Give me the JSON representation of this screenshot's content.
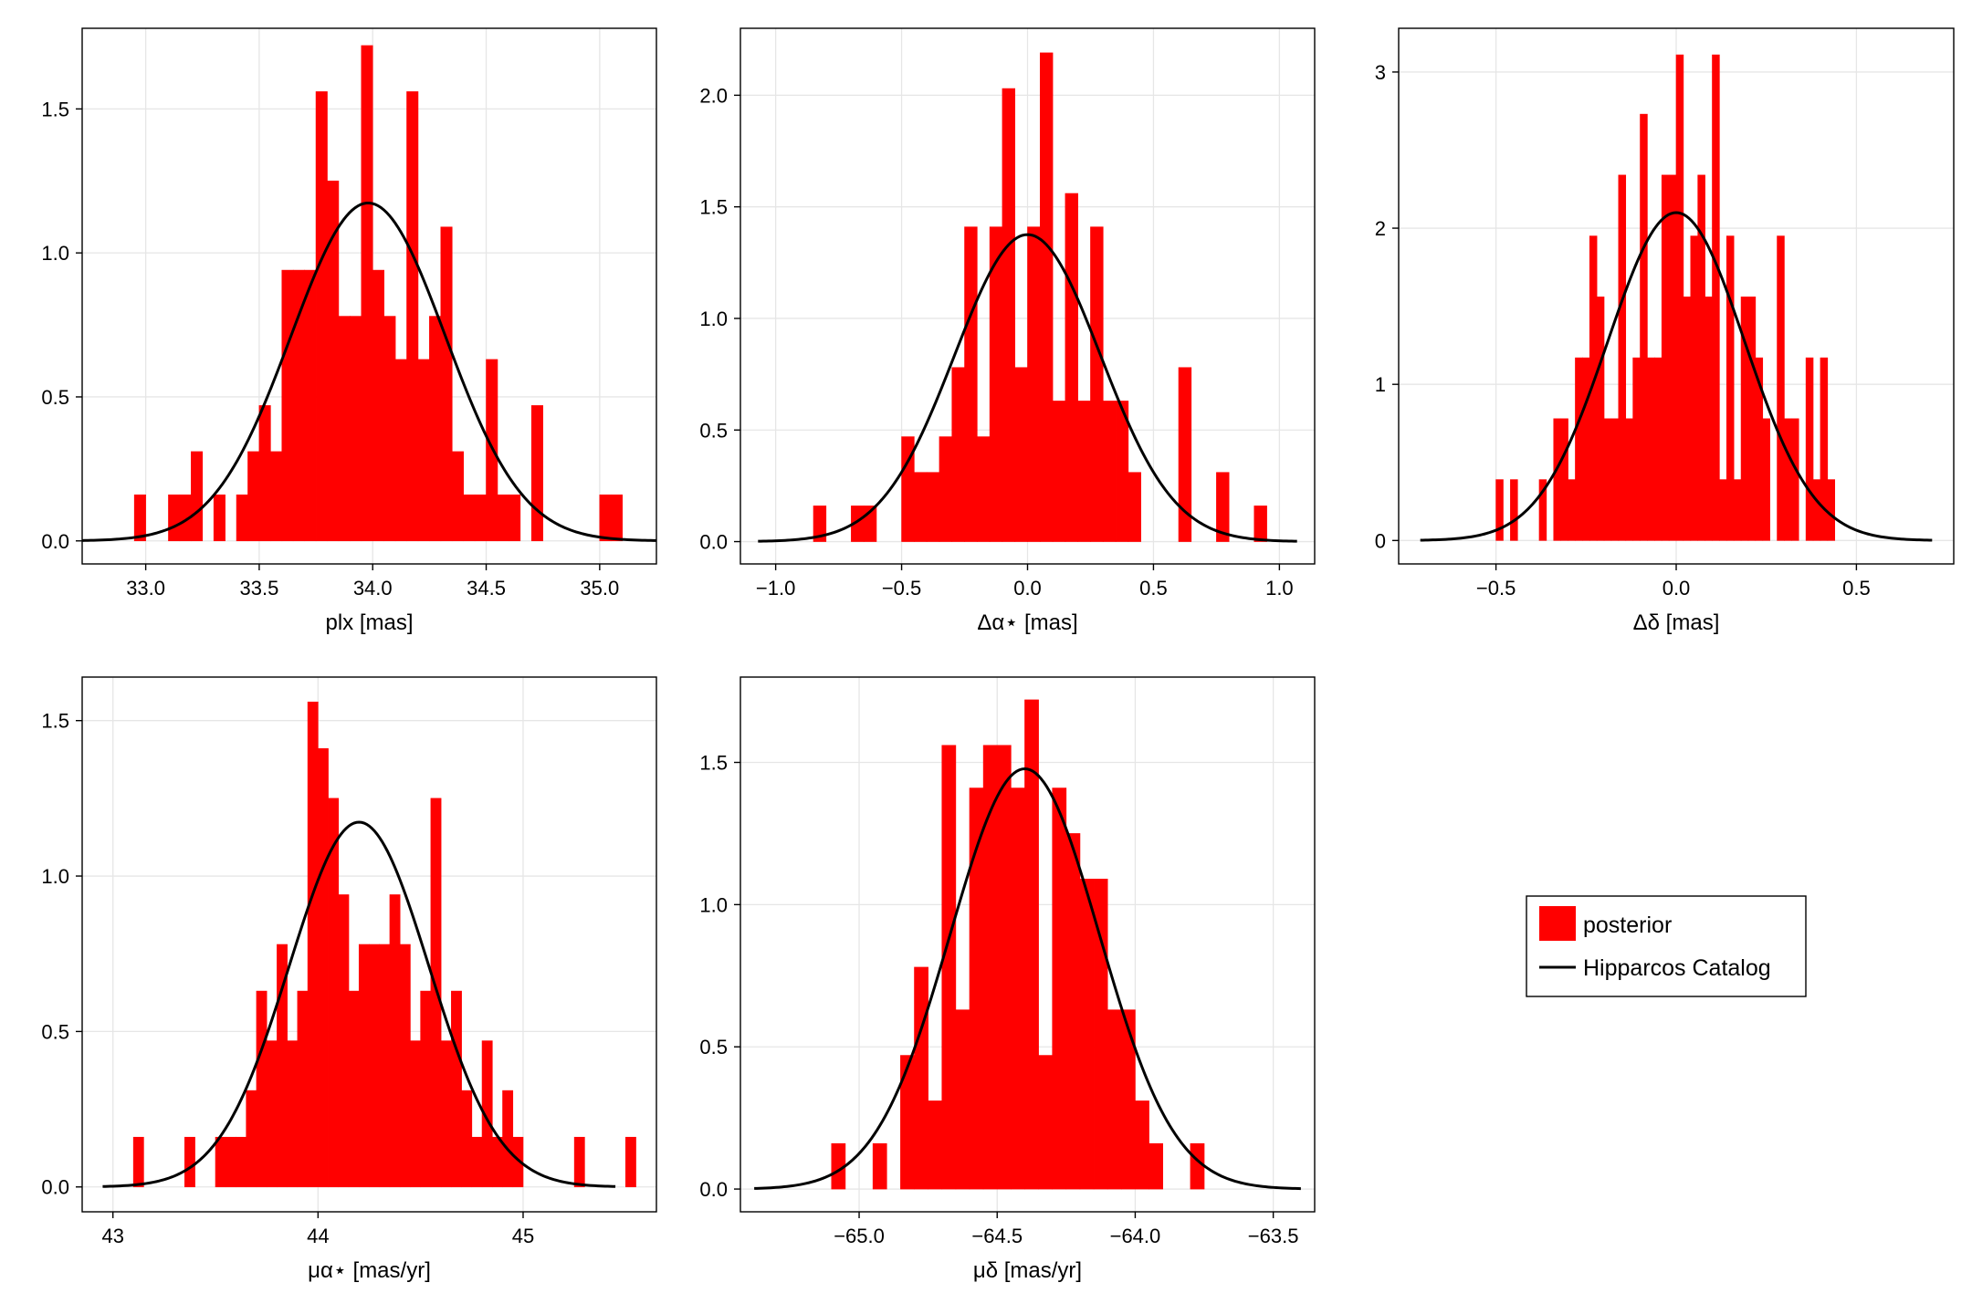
{
  "colors": {
    "posterior": "#ff0000",
    "catalog": "#000000",
    "grid": "#e6e6e6",
    "frame": "#000000"
  },
  "legend": {
    "placement": "right of bottom row",
    "entries": [
      {
        "label": "posterior",
        "kind": "bar",
        "color": "#ff0000"
      },
      {
        "label": "Hipparcos Catalog",
        "kind": "line",
        "color": "#000000"
      }
    ]
  },
  "chart_data": [
    {
      "type": "bar",
      "overlay": "line",
      "grid": true,
      "xlabel": "plx [mas]",
      "xlim": [
        32.72,
        35.25
      ],
      "ylim": [
        -0.08,
        1.78
      ],
      "xticks": [
        33.0,
        33.5,
        34.0,
        34.5,
        35.0
      ],
      "xtick_labels": [
        "33.0",
        "33.5",
        "34.0",
        "34.5",
        "35.0"
      ],
      "yticks": [
        0.0,
        0.5,
        1.0,
        1.5
      ],
      "ytick_labels": [
        "0.0",
        "0.5",
        "1.0",
        "1.5"
      ],
      "bin_width": 0.05,
      "bin_starts": [
        32.95,
        33.1,
        33.15,
        33.2,
        33.3,
        33.4,
        33.45,
        33.5,
        33.55,
        33.6,
        33.65,
        33.7,
        33.75,
        33.8,
        33.85,
        33.9,
        33.95,
        34.0,
        34.05,
        34.1,
        34.15,
        34.2,
        34.25,
        34.3,
        34.35,
        34.4,
        34.45,
        34.5,
        34.55,
        34.6,
        34.7,
        35.0,
        35.05
      ],
      "values": [
        0.16,
        0.16,
        0.16,
        0.31,
        0.16,
        0.16,
        0.31,
        0.47,
        0.31,
        0.94,
        0.94,
        0.94,
        1.56,
        1.25,
        0.78,
        0.78,
        1.72,
        0.94,
        0.78,
        0.63,
        1.56,
        0.63,
        0.78,
        1.09,
        0.31,
        0.16,
        0.16,
        0.63,
        0.16,
        0.16,
        0.47,
        0.16,
        0.16
      ],
      "curve": {
        "mean": 33.98,
        "sd": 0.34,
        "range": [
          32.72,
          35.25
        ],
        "label": "Hipparcos Catalog"
      }
    },
    {
      "type": "bar",
      "overlay": "line",
      "grid": true,
      "xlabel": "Δα⋆ [mas]",
      "xlim": [
        -1.14,
        1.14
      ],
      "ylim": [
        -0.1,
        2.3
      ],
      "xticks": [
        -1.0,
        -0.5,
        0.0,
        0.5,
        1.0
      ],
      "xtick_labels": [
        "−1.0",
        "−0.5",
        "0.0",
        "0.5",
        "1.0"
      ],
      "yticks": [
        0.0,
        0.5,
        1.0,
        1.5,
        2.0
      ],
      "ytick_labels": [
        "0.0",
        "0.5",
        "1.0",
        "1.5",
        "2.0"
      ],
      "bin_width": 0.05,
      "bin_starts": [
        -0.85,
        -0.7,
        -0.65,
        -0.5,
        -0.45,
        -0.4,
        -0.35,
        -0.3,
        -0.25,
        -0.2,
        -0.15,
        -0.1,
        -0.05,
        0.0,
        0.05,
        0.1,
        0.15,
        0.2,
        0.25,
        0.3,
        0.35,
        0.4,
        0.6,
        0.75,
        0.9
      ],
      "values": [
        0.16,
        0.16,
        0.16,
        0.47,
        0.31,
        0.31,
        0.47,
        0.78,
        1.41,
        0.47,
        1.41,
        2.03,
        0.78,
        1.41,
        2.19,
        0.63,
        1.56,
        0.63,
        1.41,
        0.63,
        0.63,
        0.31,
        0.78,
        0.31,
        0.16
      ],
      "curve": {
        "mean": 0.0,
        "sd": 0.29,
        "range": [
          -1.07,
          1.07
        ],
        "label": "Hipparcos Catalog"
      }
    },
    {
      "type": "bar",
      "overlay": "line",
      "grid": true,
      "xlabel": "Δδ [mas]",
      "xlim": [
        -0.77,
        0.77
      ],
      "ylim": [
        -0.15,
        3.28
      ],
      "xticks": [
        -0.5,
        0.0,
        0.5
      ],
      "xtick_labels": [
        "−0.5",
        "0.0",
        "0.5"
      ],
      "yticks": [
        0,
        1,
        2,
        3
      ],
      "ytick_labels": [
        "0",
        "1",
        "2",
        "3"
      ],
      "bin_width": 0.02,
      "bin_starts": [
        -0.5,
        -0.46,
        -0.38,
        -0.34,
        -0.32,
        -0.3,
        -0.28,
        -0.26,
        -0.24,
        -0.22,
        -0.2,
        -0.18,
        -0.16,
        -0.14,
        -0.12,
        -0.1,
        -0.08,
        -0.06,
        -0.04,
        -0.02,
        0.0,
        0.02,
        0.04,
        0.06,
        0.08,
        0.1,
        0.12,
        0.14,
        0.16,
        0.18,
        0.2,
        0.22,
        0.24,
        0.28,
        0.3,
        0.32,
        0.36,
        0.38,
        0.4,
        0.42
      ],
      "values": [
        0.39,
        0.39,
        0.39,
        0.78,
        0.78,
        0.39,
        1.17,
        1.17,
        1.95,
        1.56,
        0.78,
        0.78,
        2.34,
        0.78,
        1.17,
        2.73,
        1.17,
        1.17,
        2.34,
        2.34,
        3.11,
        1.56,
        1.95,
        2.34,
        1.56,
        3.11,
        0.39,
        1.95,
        0.39,
        1.56,
        1.56,
        1.17,
        0.78,
        1.95,
        0.78,
        0.78,
        1.17,
        0.39,
        1.17,
        0.39
      ],
      "curve": {
        "mean": 0.0,
        "sd": 0.19,
        "range": [
          -0.71,
          0.71
        ],
        "label": "Hipparcos Catalog"
      }
    },
    {
      "type": "bar",
      "overlay": "line",
      "grid": true,
      "xlabel": "μα⋆ [mas/yr]",
      "xlim": [
        42.85,
        45.65
      ],
      "ylim": [
        -0.08,
        1.64
      ],
      "xticks": [
        43,
        44,
        45
      ],
      "xtick_labels": [
        "43",
        "44",
        "45"
      ],
      "yticks": [
        0.0,
        0.5,
        1.0,
        1.5
      ],
      "ytick_labels": [
        "0.0",
        "0.5",
        "1.0",
        "1.5"
      ],
      "bin_width": 0.05,
      "bin_starts": [
        43.1,
        43.35,
        43.5,
        43.55,
        43.6,
        43.65,
        43.7,
        43.75,
        43.8,
        43.85,
        43.9,
        43.95,
        44.0,
        44.05,
        44.1,
        44.15,
        44.2,
        44.25,
        44.3,
        44.35,
        44.4,
        44.45,
        44.5,
        44.55,
        44.6,
        44.65,
        44.7,
        44.75,
        44.8,
        44.85,
        44.9,
        44.95,
        45.25,
        45.5
      ],
      "values": [
        0.16,
        0.16,
        0.16,
        0.16,
        0.16,
        0.31,
        0.63,
        0.47,
        0.78,
        0.47,
        0.63,
        1.56,
        1.41,
        1.25,
        0.94,
        0.63,
        0.78,
        0.78,
        0.78,
        0.94,
        0.78,
        0.47,
        0.63,
        1.25,
        0.47,
        0.63,
        0.31,
        0.16,
        0.47,
        0.16,
        0.31,
        0.16,
        0.16,
        0.16
      ],
      "curve": {
        "mean": 44.2,
        "sd": 0.34,
        "range": [
          42.95,
          45.45
        ],
        "label": "Hipparcos Catalog"
      }
    },
    {
      "type": "bar",
      "overlay": "line",
      "grid": true,
      "xlabel": "μδ [mas/yr]",
      "xlim": [
        -65.43,
        -63.35
      ],
      "ylim": [
        -0.08,
        1.8
      ],
      "xticks": [
        -65.0,
        -64.5,
        -64.0,
        -63.5
      ],
      "xtick_labels": [
        "−65.0",
        "−64.5",
        "−64.0",
        "−63.5"
      ],
      "yticks": [
        0.0,
        0.5,
        1.0,
        1.5
      ],
      "ytick_labels": [
        "0.0",
        "0.5",
        "1.0",
        "1.5"
      ],
      "bin_width": 0.05,
      "bin_starts": [
        -65.1,
        -64.95,
        -64.85,
        -64.8,
        -64.75,
        -64.7,
        -64.65,
        -64.6,
        -64.55,
        -64.5,
        -64.45,
        -64.4,
        -64.35,
        -64.3,
        -64.25,
        -64.2,
        -64.15,
        -64.1,
        -64.05,
        -64.0,
        -63.95,
        -63.8
      ],
      "values": [
        0.16,
        0.16,
        0.47,
        0.78,
        0.31,
        1.56,
        0.63,
        1.41,
        1.56,
        1.56,
        1.41,
        1.72,
        0.47,
        1.41,
        1.25,
        1.09,
        1.09,
        0.63,
        0.63,
        0.31,
        0.16,
        0.16
      ],
      "curve": {
        "mean": -64.4,
        "sd": 0.27,
        "range": [
          -65.38,
          -63.4
        ],
        "label": "Hipparcos Catalog"
      }
    }
  ]
}
